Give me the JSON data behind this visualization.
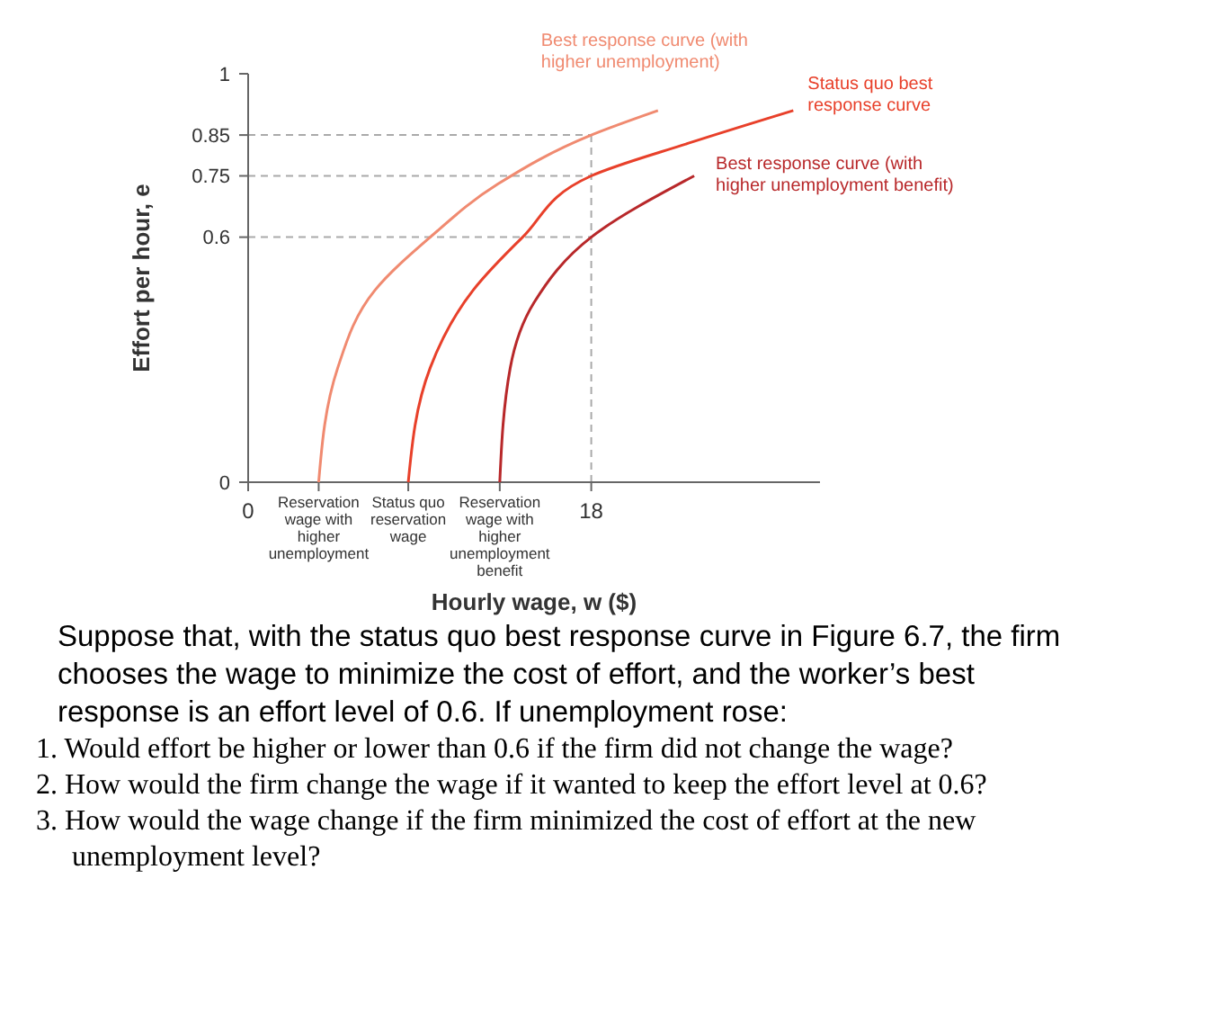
{
  "chart_data": {
    "type": "line",
    "xlabel": "Hourly wage, w ($)",
    "ylabel": "Effort per hour, e",
    "xlim": [
      0,
      30
    ],
    "ylim": [
      0,
      1
    ],
    "xticks": [
      0,
      {
        "value": 3.7,
        "label": "Reservation wage with higher unemployment"
      },
      {
        "value": 8.4,
        "label": "Status quo reservation wage"
      },
      {
        "value": 13.2,
        "label": "Reservation wage with higher unemployment benefit"
      },
      18
    ],
    "yticks": [
      0,
      0.6,
      0.75,
      0.85,
      1
    ],
    "grid": false,
    "marker": "none",
    "line_style": "solid",
    "series": [
      {
        "name": "Best response curve (with higher unemployment)",
        "color": "#f08a70",
        "x": [
          3.7,
          4.7,
          6.65,
          9.55,
          13.1,
          18,
          21.5
        ],
        "values": [
          0,
          0.28,
          0.47,
          0.6,
          0.73,
          0.85,
          0.91
        ]
      },
      {
        "name": "Status quo best response curve",
        "color": "#e8402a",
        "x": [
          8.4,
          9.55,
          11.8,
          14.4,
          18,
          23.1,
          28.6
        ],
        "values": [
          0,
          0.28,
          0.47,
          0.6,
          0.75,
          0.83,
          0.91
        ]
      },
      {
        "name": "Best response curve (with higher unemployment benefit)",
        "color": "#b8282a",
        "x": [
          13.2,
          13.75,
          15,
          18,
          23.4
        ],
        "values": [
          0,
          0.28,
          0.44,
          0.6,
          0.75
        ]
      }
    ],
    "ref_lines": [
      {
        "axis": "y",
        "value": 0.85,
        "color": "#aaaaaa",
        "line_style": "dashed"
      },
      {
        "axis": "y",
        "value": 0.75,
        "color": "#aaaaaa",
        "line_style": "dashed"
      },
      {
        "axis": "y",
        "value": 0.6,
        "color": "#aaaaaa",
        "line_style": "dashed"
      },
      {
        "axis": "x",
        "value": 18,
        "color": "#aaaaaa",
        "line_style": "dashed"
      }
    ],
    "annotations": [
      "Suppose that, with the status quo best response curve in Figure 6.7, the firm chooses the wage to minimize the cost of effort, and the worker’s best response is an effort level of 0.6. If unemployment rose:",
      "1. Would effort be higher or lower than 0.6 if the firm did not change the wage?",
      "2. How would the firm change the wage if it wanted to keep the effort level at 0.6?",
      "3. How would the wage change if the firm minimized the cost of effort at the new unemployment level?"
    ]
  }
}
